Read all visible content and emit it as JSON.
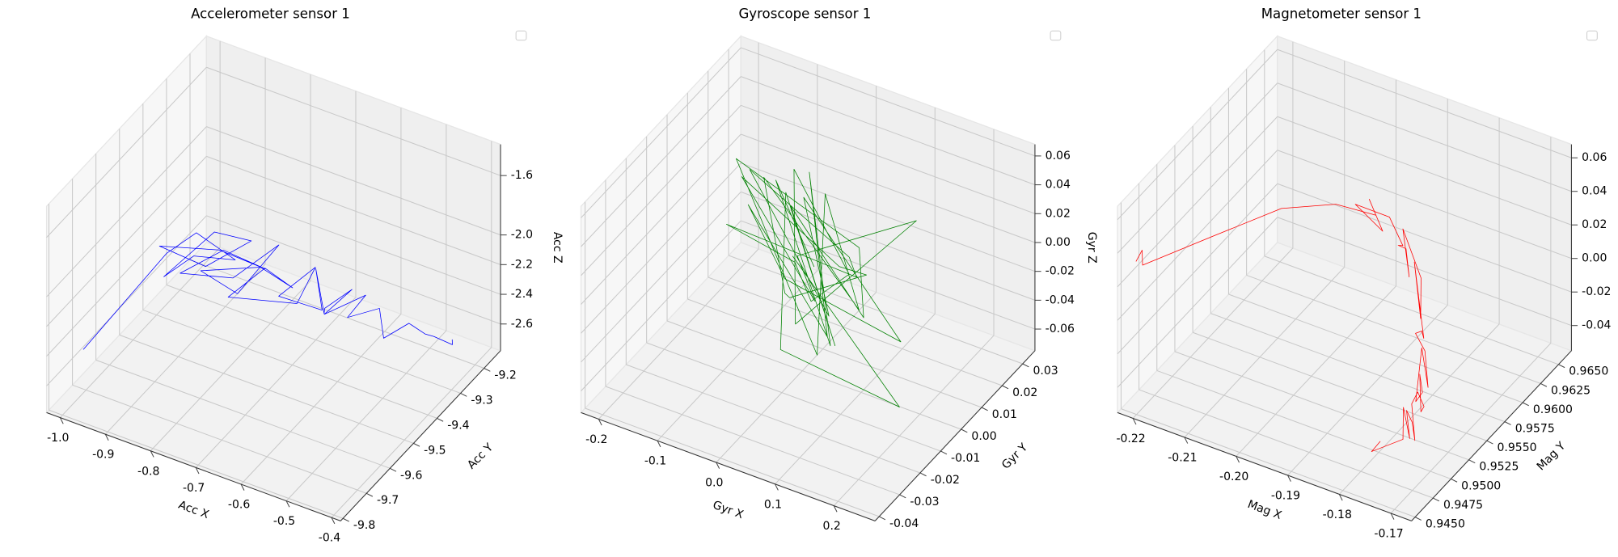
{
  "chart_data": [
    {
      "type": "line3d",
      "title": "Accelerometer sensor 1",
      "xlabel": "Acc X",
      "ylabel": "Acc Y",
      "zlabel": "Acc Z",
      "legend": "upper right",
      "xlim": [
        -1.03,
        -0.38
      ],
      "ylim": [
        -9.81,
        -9.13
      ],
      "zlim": [
        -2.78,
        -1.39
      ],
      "xticks": [
        {
          "value": -1,
          "label": "-1.0"
        },
        -0.9,
        -0.8,
        -0.7,
        -0.6,
        -0.5,
        -0.4
      ],
      "yticks": [
        -9.8,
        -9.7,
        -9.6,
        -9.5,
        -9.4,
        -9.3,
        -9.2
      ],
      "zticks": [
        -2.6,
        -2.4,
        -2.2,
        {
          "value": -2,
          "label": "-2.0"
        },
        -1.6
      ],
      "series": [
        {
          "color": "#0000ff",
          "x": [
            -0.98,
            -0.9,
            -0.86,
            -0.8,
            -0.84,
            -0.88,
            -0.82,
            -0.78,
            -0.85,
            -0.9,
            -0.83,
            -0.76,
            -0.8,
            -0.87,
            -0.81,
            -0.74,
            -0.79,
            -0.84,
            -0.77,
            -0.72,
            -0.75,
            -0.8,
            -0.7,
            -0.68,
            -0.73,
            -0.66,
            -0.7,
            -0.64,
            -0.67,
            -0.62,
            -0.65,
            -0.6,
            -0.63,
            -0.58,
            -0.55,
            -0.52,
            -0.5,
            -0.47,
            -0.45,
            -0.44
          ],
          "y": [
            -9.75,
            -9.55,
            -9.5,
            -9.45,
            -9.55,
            -9.6,
            -9.5,
            -9.42,
            -9.48,
            -9.58,
            -9.46,
            -9.4,
            -9.5,
            -9.55,
            -9.44,
            -9.38,
            -9.46,
            -9.52,
            -9.4,
            -9.36,
            -9.42,
            -9.48,
            -9.38,
            -9.34,
            -9.4,
            -9.35,
            -9.3,
            -9.38,
            -9.32,
            -9.3,
            -9.36,
            -9.28,
            -9.3,
            -9.26,
            -9.3,
            -9.25,
            -9.22,
            -9.24,
            -9.2,
            -9.22
          ],
          "values": [
            -2.4,
            -2.0,
            -1.9,
            -2.1,
            -1.95,
            -2.05,
            -1.85,
            -2.0,
            -2.15,
            -1.9,
            -2.05,
            -2.2,
            -1.95,
            -2.1,
            -2.25,
            -2.05,
            -2.3,
            -2.1,
            -2.2,
            -2.35,
            -2.15,
            -2.3,
            -2.4,
            -2.2,
            -2.35,
            -2.45,
            -2.3,
            -2.4,
            -2.5,
            -2.35,
            -2.45,
            -2.4,
            -2.55,
            -2.5,
            -2.6,
            -2.55,
            -2.65,
            -2.6,
            -2.7,
            -2.62
          ]
        }
      ]
    },
    {
      "type": "line3d",
      "title": "Gyroscope sensor 1",
      "xlabel": "Gyr X",
      "ylabel": "Gyr Y",
      "zlabel": "Gyr Z",
      "legend": "upper right",
      "xlim": [
        -0.23,
        0.27
      ],
      "ylim": [
        -0.042,
        0.036
      ],
      "zlim": [
        -0.075,
        0.068
      ],
      "xticks": [
        -0.2,
        -0.1,
        {
          "value": 0,
          "label": "0.0"
        },
        0.1,
        0.2
      ],
      "yticks": [
        -0.04,
        -0.03,
        -0.02,
        -0.01,
        {
          "value": 0,
          "label": "0.00"
        },
        0.01,
        0.02,
        0.03
      ],
      "zticks": [
        -0.06,
        -0.04,
        -0.02,
        {
          "value": 0,
          "label": "0.00"
        },
        0.02,
        0.04,
        0.06
      ],
      "series": [
        {
          "color": "#008000",
          "x": [
            0.02,
            -0.08,
            0.1,
            -0.03,
            0.06,
            -0.12,
            0.04,
            0.15,
            -0.05,
            0.08,
            -0.1,
            0.01,
            0.12,
            -0.15,
            0.05,
            -0.02,
            0.09,
            -0.07,
            0.03,
            0.18,
            -0.04,
            0.07,
            -0.11,
            0.0,
            0.13,
            -0.06,
            0.04,
            -0.09,
            0.11,
            -0.01,
            0.06,
            -0.13,
            0.02,
            0.16,
            -0.03,
            0.08,
            -0.07,
            0.05,
            0.2,
            -0.02
          ],
          "y": [
            0.0,
            0.01,
            -0.015,
            0.012,
            -0.005,
            0.008,
            -0.02,
            0.005,
            0.015,
            -0.01,
            0.003,
            0.02,
            -0.008,
            0.006,
            -0.018,
            0.01,
            -0.003,
            0.016,
            -0.012,
            0.004,
            0.009,
            -0.014,
            0.002,
            0.018,
            -0.006,
            0.011,
            -0.02,
            0.007,
            -0.004,
            0.014,
            -0.01,
            0.005,
            0.022,
            -0.016,
            0.003,
            -0.007,
            0.012,
            -0.025,
            -0.01,
            0.001
          ],
          "values": [
            0.0,
            0.03,
            -0.02,
            0.04,
            -0.035,
            0.01,
            0.025,
            -0.04,
            0.015,
            -0.01,
            0.045,
            -0.025,
            0.02,
            -0.005,
            0.035,
            -0.045,
            0.01,
            0.03,
            -0.02,
            0.05,
            -0.015,
            0.005,
            0.04,
            -0.03,
            0.02,
            -0.05,
            0.015,
            0.035,
            -0.01,
            0.025,
            -0.04,
            0.045,
            -0.02,
            0.01,
            0.03,
            -0.035,
            0.02,
            -0.015,
            -0.055,
            0.0
          ]
        }
      ]
    },
    {
      "type": "line3d",
      "title": "Magnetometer sensor 1",
      "xlabel": "Mag X",
      "ylabel": "Mag Y",
      "zlabel": "Mag Z",
      "legend": "upper right",
      "xlim": [
        -0.223,
        -0.166
      ],
      "ylim": [
        0.9445,
        0.9668
      ],
      "zlim": [
        -0.055,
        0.068
      ],
      "xticks": [
        -0.22,
        -0.21,
        {
          "value": -0.2,
          "label": "-0.20"
        },
        -0.19,
        -0.18,
        -0.17
      ],
      "yticks": [
        {
          "value": 0.945,
          "label": "0.9450"
        },
        0.9475,
        {
          "value": 0.95,
          "label": "0.9500"
        },
        0.9525,
        {
          "value": 0.955,
          "label": "0.9550"
        },
        0.9575,
        {
          "value": 0.96,
          "label": "0.9600"
        },
        0.9625,
        {
          "value": 0.965,
          "label": "0.9650"
        }
      ],
      "zticks": [
        -0.04,
        -0.02,
        {
          "value": 0,
          "label": "0.00"
        },
        0.02,
        0.04,
        0.06
      ],
      "series": [
        {
          "color": "#ff0000",
          "x": [
            -0.2215,
            -0.221,
            -0.2205,
            -0.215,
            -0.21,
            -0.205,
            -0.2,
            -0.202,
            -0.198,
            -0.204,
            -0.196,
            -0.192,
            -0.195,
            -0.19,
            -0.188,
            -0.192,
            -0.185,
            -0.183,
            -0.187,
            -0.181,
            -0.18,
            -0.184,
            -0.178,
            -0.176,
            -0.18,
            -0.177,
            -0.175,
            -0.179,
            -0.176,
            -0.174,
            -0.178,
            -0.175,
            -0.173,
            -0.177,
            -0.176,
            -0.174,
            -0.178,
            -0.176,
            -0.18,
            -0.179
          ],
          "y": [
            0.946,
            0.9465,
            0.9462,
            0.952,
            0.958,
            0.962,
            0.964,
            0.9645,
            0.9635,
            0.964,
            0.963,
            0.962,
            0.9635,
            0.961,
            0.96,
            0.962,
            0.9595,
            0.958,
            0.96,
            0.957,
            0.956,
            0.958,
            0.955,
            0.954,
            0.956,
            0.953,
            0.9525,
            0.955,
            0.953,
            0.952,
            0.954,
            0.951,
            0.95,
            0.9525,
            0.951,
            0.95,
            0.952,
            0.9505,
            0.949,
            0.9495
          ],
          "values": [
            0.03,
            0.035,
            0.028,
            0.025,
            0.02,
            0.01,
            0.0,
            0.005,
            -0.005,
            0.002,
            0.008,
            0.0,
            -0.01,
            0.005,
            -0.005,
            0.01,
            0.0,
            -0.015,
            0.005,
            -0.02,
            -0.01,
            -0.025,
            -0.015,
            -0.03,
            -0.02,
            -0.035,
            -0.025,
            -0.03,
            -0.04,
            -0.03,
            -0.035,
            -0.025,
            -0.04,
            -0.045,
            -0.03,
            -0.04,
            -0.035,
            -0.045,
            -0.05,
            -0.045
          ]
        }
      ]
    }
  ]
}
